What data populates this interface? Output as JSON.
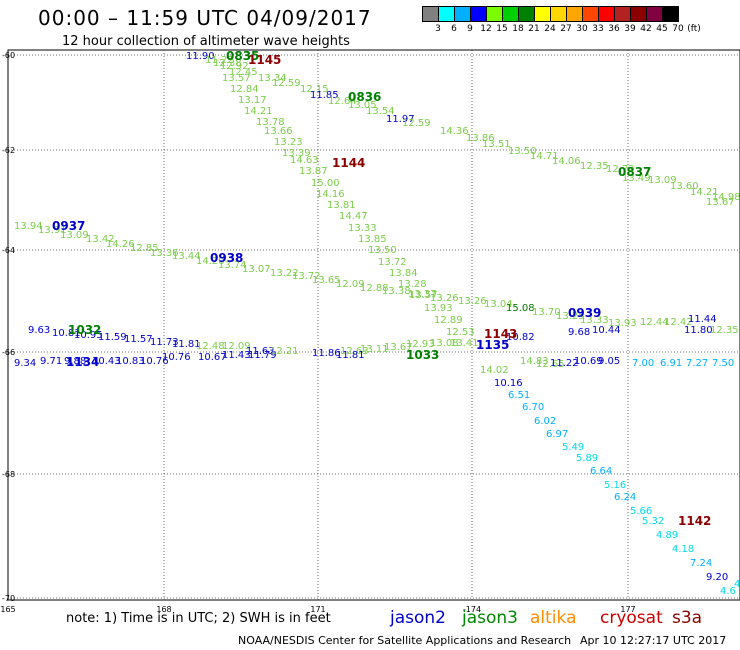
{
  "header": {
    "title": "00:00 – 11:59 UTC 04/09/2017",
    "subtitle": "12 hour collection of altimeter wave heights"
  },
  "color_scale": {
    "labels": [
      "3",
      "6",
      "9",
      "12",
      "15",
      "18",
      "21",
      "24",
      "27",
      "30",
      "33",
      "36",
      "39",
      "42",
      "45",
      "70",
      "(ft)"
    ],
    "colors": [
      "#808080",
      "#00ffff",
      "#00b0ff",
      "#0000ff",
      "#7cfc00",
      "#00d000",
      "#008000",
      "#ffff00",
      "#ffd700",
      "#ffa500",
      "#ff4500",
      "#ff0000",
      "#b22222",
      "#8b0000",
      "#800040",
      "#000000"
    ]
  },
  "axes": {
    "x_ticks": [
      "165",
      "168",
      "171",
      "-174",
      "177"
    ],
    "y_ticks": [
      "-60",
      "-62",
      "-64",
      "-66",
      "-68",
      "-70"
    ]
  },
  "passes": [
    {
      "label": "0835",
      "color": "#008000"
    },
    {
      "label": "1145",
      "color": "#8b0000"
    },
    {
      "label": "0836",
      "color": "#008000"
    },
    {
      "label": "1144",
      "color": "#8b0000"
    },
    {
      "label": "0837",
      "color": "#008000"
    },
    {
      "label": "0937",
      "color": "#0000cc"
    },
    {
      "label": "0938",
      "color": "#0000cc"
    },
    {
      "label": "0939",
      "color": "#0000cc"
    },
    {
      "label": "1032",
      "color": "#008000"
    },
    {
      "label": "1134",
      "color": "#0000cc"
    },
    {
      "label": "1033",
      "color": "#008000"
    },
    {
      "label": "1143",
      "color": "#8b0000"
    },
    {
      "label": "1135",
      "color": "#0000cc"
    },
    {
      "label": "1142",
      "color": "#8b0000"
    }
  ],
  "readings": [
    {
      "t": "11.90",
      "c": "#0000cc"
    },
    {
      "t": "11.22",
      "c": "#7ccd4a"
    },
    {
      "t": "12.38",
      "c": "#7ccd4a"
    },
    {
      "t": "12.92",
      "c": "#7ccd4a"
    },
    {
      "t": "12.45",
      "c": "#7ccd4a"
    },
    {
      "t": "13.57",
      "c": "#7ccd4a"
    },
    {
      "t": "13.34",
      "c": "#7ccd4a"
    },
    {
      "t": "12.84",
      "c": "#7ccd4a"
    },
    {
      "t": "12.59",
      "c": "#7ccd4a"
    },
    {
      "t": "12.15",
      "c": "#7ccd4a"
    },
    {
      "t": "13.17",
      "c": "#7ccd4a"
    },
    {
      "t": "14.21",
      "c": "#7ccd4a"
    },
    {
      "t": "13.78",
      "c": "#7ccd4a"
    },
    {
      "t": "13.66",
      "c": "#7ccd4a"
    },
    {
      "t": "13.23",
      "c": "#7ccd4a"
    },
    {
      "t": "13.39",
      "c": "#7ccd4a"
    },
    {
      "t": "14.63",
      "c": "#7ccd4a"
    },
    {
      "t": "13.87",
      "c": "#7ccd4a"
    },
    {
      "t": "15.00",
      "c": "#7ccd4a"
    },
    {
      "t": "14.16",
      "c": "#7ccd4a"
    },
    {
      "t": "13.81",
      "c": "#7ccd4a"
    },
    {
      "t": "14.47",
      "c": "#7ccd4a"
    },
    {
      "t": "13.33",
      "c": "#7ccd4a"
    },
    {
      "t": "13.85",
      "c": "#7ccd4a"
    },
    {
      "t": "13.50",
      "c": "#7ccd4a"
    },
    {
      "t": "13.72",
      "c": "#7ccd4a"
    },
    {
      "t": "13.84",
      "c": "#7ccd4a"
    },
    {
      "t": "13.28",
      "c": "#7ccd4a"
    },
    {
      "t": "13.57",
      "c": "#7ccd4a"
    },
    {
      "t": "13.93",
      "c": "#7ccd4a"
    },
    {
      "t": "12.89",
      "c": "#7ccd4a"
    },
    {
      "t": "12.53",
      "c": "#7ccd4a"
    },
    {
      "t": "11.85",
      "c": "#0000cc"
    },
    {
      "t": "12.64",
      "c": "#7ccd4a"
    },
    {
      "t": "13.05",
      "c": "#7ccd4a"
    },
    {
      "t": "13.54",
      "c": "#7ccd4a"
    },
    {
      "t": "11.97",
      "c": "#0000cc"
    },
    {
      "t": "12.59",
      "c": "#7ccd4a"
    },
    {
      "t": "14.36",
      "c": "#7ccd4a"
    },
    {
      "t": "13.86",
      "c": "#7ccd4a"
    },
    {
      "t": "13.51",
      "c": "#7ccd4a"
    },
    {
      "t": "13.50",
      "c": "#7ccd4a"
    },
    {
      "t": "14.71",
      "c": "#7ccd4a"
    },
    {
      "t": "14.06",
      "c": "#7ccd4a"
    },
    {
      "t": "12.35",
      "c": "#7ccd4a"
    },
    {
      "t": "12.72",
      "c": "#7ccd4a"
    },
    {
      "t": "13.49",
      "c": "#7ccd4a"
    },
    {
      "t": "13.09",
      "c": "#7ccd4a"
    },
    {
      "t": "13.60",
      "c": "#7ccd4a"
    },
    {
      "t": "14.21",
      "c": "#7ccd4a"
    },
    {
      "t": "14.98",
      "c": "#7ccd4a"
    },
    {
      "t": "13.67",
      "c": "#7ccd4a"
    },
    {
      "t": "13.94",
      "c": "#7ccd4a"
    },
    {
      "t": "13.91",
      "c": "#7ccd4a"
    },
    {
      "t": "13.09",
      "c": "#7ccd4a"
    },
    {
      "t": "13.42",
      "c": "#7ccd4a"
    },
    {
      "t": "14.26",
      "c": "#7ccd4a"
    },
    {
      "t": "12.85",
      "c": "#7ccd4a"
    },
    {
      "t": "13.36",
      "c": "#7ccd4a"
    },
    {
      "t": "13.44",
      "c": "#7ccd4a"
    },
    {
      "t": "14.20",
      "c": "#7ccd4a"
    },
    {
      "t": "13.74",
      "c": "#7ccd4a"
    },
    {
      "t": "13.07",
      "c": "#7ccd4a"
    },
    {
      "t": "13.22",
      "c": "#7ccd4a"
    },
    {
      "t": "13.72",
      "c": "#7ccd4a"
    },
    {
      "t": "13.65",
      "c": "#7ccd4a"
    },
    {
      "t": "12.09",
      "c": "#7ccd4a"
    },
    {
      "t": "12.88",
      "c": "#7ccd4a"
    },
    {
      "t": "13.38",
      "c": "#7ccd4a"
    },
    {
      "t": "13.37",
      "c": "#7ccd4a"
    },
    {
      "t": "13.26",
      "c": "#7ccd4a"
    },
    {
      "t": "13.26",
      "c": "#7ccd4a"
    },
    {
      "t": "13.04",
      "c": "#7ccd4a"
    },
    {
      "t": "15.08",
      "c": "#007700"
    },
    {
      "t": "13.70",
      "c": "#7ccd4a"
    },
    {
      "t": "13.25",
      "c": "#7ccd4a"
    },
    {
      "t": "13.33",
      "c": "#7ccd4a"
    },
    {
      "t": "13.93",
      "c": "#7ccd4a"
    },
    {
      "t": "12.44",
      "c": "#7ccd4a"
    },
    {
      "t": "12.42",
      "c": "#7ccd4a"
    },
    {
      "t": "11.44",
      "c": "#0000cc"
    },
    {
      "t": "11.80",
      "c": "#0000cc"
    },
    {
      "t": "12.35",
      "c": "#7ccd4a"
    },
    {
      "t": "9.68",
      "c": "#0000cc"
    },
    {
      "t": "10.44",
      "c": "#0000cc"
    },
    {
      "t": "9.63",
      "c": "#0000cc"
    },
    {
      "t": "10.81",
      "c": "#0000cc"
    },
    {
      "t": "10.95",
      "c": "#0000cc"
    },
    {
      "t": "11.59",
      "c": "#0000cc"
    },
    {
      "t": "11.57",
      "c": "#0000cc"
    },
    {
      "t": "11.73",
      "c": "#0000cc"
    },
    {
      "t": "11.81",
      "c": "#0000cc"
    },
    {
      "t": "12.48",
      "c": "#7ccd4a"
    },
    {
      "t": "12.09",
      "c": "#7ccd4a"
    },
    {
      "t": "11.63",
      "c": "#0000cc"
    },
    {
      "t": "9.34",
      "c": "#0000cc"
    },
    {
      "t": "9.71",
      "c": "#0000cc"
    },
    {
      "t": "9.88",
      "c": "#0000cc"
    },
    {
      "t": "10.43",
      "c": "#0000cc"
    },
    {
      "t": "10.83",
      "c": "#0000cc"
    },
    {
      "t": "10.76",
      "c": "#0000cc"
    },
    {
      "t": "10.76",
      "c": "#0000cc"
    },
    {
      "t": "10.67",
      "c": "#0000cc"
    },
    {
      "t": "11.43",
      "c": "#0000cc"
    },
    {
      "t": "11.79",
      "c": "#0000cc"
    },
    {
      "t": "12.21",
      "c": "#7ccd4a"
    },
    {
      "t": "11.86",
      "c": "#0000cc"
    },
    {
      "t": "12.63",
      "c": "#7ccd4a"
    },
    {
      "t": "13.11",
      "c": "#7ccd4a"
    },
    {
      "t": "13.67",
      "c": "#7ccd4a"
    },
    {
      "t": "11.81",
      "c": "#0000cc"
    },
    {
      "t": "12.93",
      "c": "#7ccd4a"
    },
    {
      "t": "13.08",
      "c": "#7ccd4a"
    },
    {
      "t": "13.41",
      "c": "#7ccd4a"
    },
    {
      "t": "10.82",
      "c": "#0000cc"
    },
    {
      "t": "12.65",
      "c": "#7ccd4a"
    },
    {
      "t": "14.02",
      "c": "#7ccd4a"
    },
    {
      "t": "14.83",
      "c": "#7ccd4a"
    },
    {
      "t": "11.22",
      "c": "#0000cc"
    },
    {
      "t": "10.69",
      "c": "#0000cc"
    },
    {
      "t": "9.05",
      "c": "#0000cc"
    },
    {
      "t": "7.00",
      "c": "#00b0ff"
    },
    {
      "t": "6.91",
      "c": "#00b0ff"
    },
    {
      "t": "7.27",
      "c": "#00b0ff"
    },
    {
      "t": "7.50",
      "c": "#00b0ff"
    },
    {
      "t": "10.16",
      "c": "#0000cc"
    },
    {
      "t": "6.51",
      "c": "#00b0ff"
    },
    {
      "t": "6.70",
      "c": "#00b0ff"
    },
    {
      "t": "6.02",
      "c": "#00b0ff"
    },
    {
      "t": "6.97",
      "c": "#00b0ff"
    },
    {
      "t": "5.49",
      "c": "#00d8e8"
    },
    {
      "t": "5.89",
      "c": "#00d8e8"
    },
    {
      "t": "6.64",
      "c": "#00b0ff"
    },
    {
      "t": "5.16",
      "c": "#00d8e8"
    },
    {
      "t": "6.24",
      "c": "#00b0ff"
    },
    {
      "t": "5.66",
      "c": "#00d8e8"
    },
    {
      "t": "5.32",
      "c": "#00d8e8"
    },
    {
      "t": "4.89",
      "c": "#00d8e8"
    },
    {
      "t": "4.18",
      "c": "#00d8e8"
    },
    {
      "t": "7.24",
      "c": "#00b0ff"
    },
    {
      "t": "9.20",
      "c": "#0000cc"
    },
    {
      "t": "4",
      "c": "#00d8e8"
    },
    {
      "t": "4.6",
      "c": "#00d8e8"
    }
  ],
  "footer": {
    "note": "note: 1) Time is in UTC; 2) SWH is in feet",
    "satellites": [
      {
        "name": "jason2",
        "color": "#0000cc"
      },
      {
        "name": "jason3",
        "color": "#008800"
      },
      {
        "name": "altika",
        "color": "#ff8c00"
      },
      {
        "name": "cryosat",
        "color": "#cc0000"
      },
      {
        "name": "s3a",
        "color": "#8b0000"
      }
    ],
    "credit": "NOAA/NESDIS Center for Satellite Applications and Research",
    "timestamp": "Apr 10 12:27:17 UTC 2017"
  }
}
